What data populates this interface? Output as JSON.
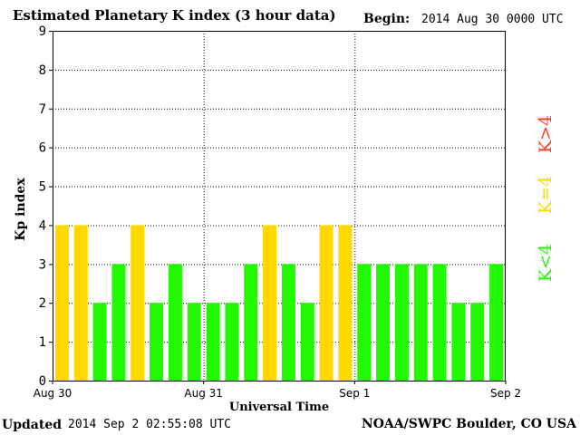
{
  "header": {
    "title": "Estimated Planetary K index (3 hour data)",
    "begin_label": "Begin:",
    "begin_value": "2014 Aug 30 0000 UTC"
  },
  "footer": {
    "updated_label": "Updated",
    "updated_value": "2014 Sep  2 02:55:08 UTC",
    "source": "NOAA/SWPC Boulder, CO USA"
  },
  "colors": {
    "low": "#22f800",
    "equal": "#ffd800",
    "high": "#ff3b1f",
    "background": "#ffffff",
    "grid": "#000000"
  },
  "chart_data": {
    "type": "bar",
    "title": "Estimated Planetary K index (3 hour data)",
    "xlabel": "Universal Time",
    "ylabel": "Kp index",
    "ylim": [
      0,
      9
    ],
    "yticks": [
      0,
      1,
      2,
      3,
      4,
      5,
      6,
      7,
      8,
      9
    ],
    "grid": true,
    "x_tick_labels": [
      "Aug 30",
      "Aug 31",
      "Sep 1",
      "Sep 2"
    ],
    "bars_per_day": 8,
    "values": [
      4,
      4,
      2,
      3,
      4,
      2,
      3,
      2,
      2,
      2,
      3,
      4,
      3,
      2,
      4,
      4,
      3,
      3,
      3,
      3,
      3,
      2,
      2,
      3
    ],
    "legend": [
      {
        "label": "K<4",
        "color_key": "low"
      },
      {
        "label": "K=4",
        "color_key": "equal"
      },
      {
        "label": "K>4",
        "color_key": "high"
      }
    ],
    "legend_placement": "right"
  }
}
